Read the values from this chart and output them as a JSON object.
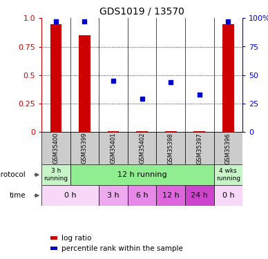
{
  "title": "GDS1019 / 13570",
  "samples": [
    "GSM35400",
    "GSM35399",
    "GSM35401",
    "GSM35402",
    "GSM35398",
    "GSM35397",
    "GSM35396"
  ],
  "log_ratio": [
    0.95,
    0.85,
    0.01,
    0.01,
    0.01,
    0.01,
    0.95
  ],
  "percentile_rank": [
    97,
    97,
    45,
    29,
    44,
    33,
    97
  ],
  "bar_color": "#cc0000",
  "dot_color": "#0000cc",
  "left_axis_color": "#cc0000",
  "right_axis_color": "#0000cc",
  "sample_box_color": "#cccccc",
  "yticks_left": [
    0,
    0.25,
    0.5,
    0.75,
    1.0
  ],
  "yticks_right": [
    0,
    25,
    50,
    75,
    100
  ],
  "proto_data": [
    [
      0,
      1,
      "#c8f5c8",
      "3 h\nrunning"
    ],
    [
      1,
      6,
      "#90ee90",
      "12 h running"
    ],
    [
      6,
      7,
      "#c8f5c8",
      "4 wks\nrunning"
    ]
  ],
  "time_data": [
    [
      0,
      2,
      "#f8d8f8",
      "0 h"
    ],
    [
      2,
      3,
      "#eeaaee",
      "3 h"
    ],
    [
      3,
      4,
      "#e888e8",
      "6 h"
    ],
    [
      4,
      5,
      "#dd66dd",
      "12 h"
    ],
    [
      5,
      6,
      "#cc44cc",
      "24 h"
    ],
    [
      6,
      7,
      "#f8d8f8",
      "0 h"
    ]
  ]
}
